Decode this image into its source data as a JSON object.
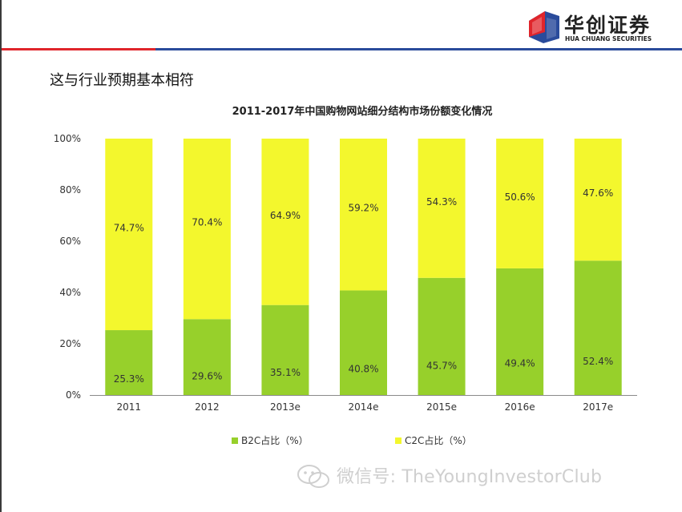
{
  "header": {
    "logo_cn": "华创证券",
    "logo_en": "HUA CHUANG SECURITIES",
    "slide_title": "这与行业预期基本相符"
  },
  "watermark": {
    "text": "微信号: TheYoungInvestorClub",
    "icon": "wechat-icon"
  },
  "colors": {
    "b2c": "#97d02b",
    "c2c": "#f3f72d",
    "red_rule": "#e0252b",
    "blue_rule": "#2a4b9b"
  },
  "chart_data": {
    "type": "bar",
    "stacked": true,
    "title": "2011-2017年中国购物网站细分结构市场份额变化情况",
    "categories": [
      "2011",
      "2012",
      "2013e",
      "2014e",
      "2015e",
      "2016e",
      "2017e"
    ],
    "series": [
      {
        "name": "B2C占比（%）",
        "values": [
          25.3,
          29.6,
          35.1,
          40.8,
          45.7,
          49.4,
          52.4
        ],
        "labels": [
          "25.3%",
          "29.6%",
          "35.1%",
          "40.8%",
          "45.7%",
          "49.4%",
          "52.4%"
        ]
      },
      {
        "name": "C2C占比（%）",
        "values": [
          74.7,
          70.4,
          64.9,
          59.2,
          54.3,
          50.6,
          47.6
        ],
        "labels": [
          "74.7%",
          "70.4%",
          "64.9%",
          "59.2%",
          "54.3%",
          "50.6%",
          "47.6%"
        ]
      }
    ],
    "yticks": [
      "0%",
      "20%",
      "40%",
      "60%",
      "80%",
      "100%"
    ],
    "ylim": [
      0,
      100
    ],
    "xlabel": "",
    "ylabel": "",
    "legend_position": "bottom"
  }
}
